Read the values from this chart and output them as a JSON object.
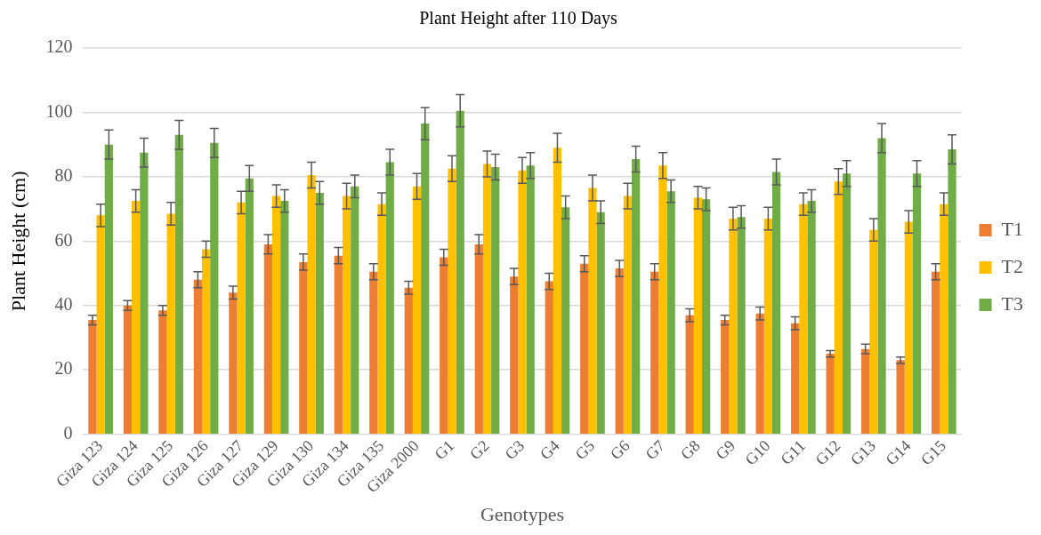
{
  "chart_data": {
    "type": "bar",
    "title": "Plant Height after 110 Days",
    "xlabel": "Genotypes",
    "ylabel": "Plant Height (cm)",
    "categories": [
      "Giza 123",
      "Giza 124",
      "Giza 125",
      "Giza 126",
      "Giza 127",
      "Giza 129",
      "Giza 130",
      "Giza 134",
      "Giza 135",
      "Giza 2000",
      "G1",
      "G2",
      "G3",
      "G4",
      "G5",
      "G6",
      "G7",
      "G8",
      "G9",
      "G10",
      "G11",
      "G12",
      "G13",
      "G14",
      "G15"
    ],
    "series": [
      {
        "name": "T1",
        "color": "#ed7d31",
        "values": [
          35.5,
          40,
          38.5,
          48,
          44,
          59,
          53.5,
          55.5,
          50.5,
          45.5,
          55,
          59,
          49,
          47.5,
          53,
          51.5,
          50.5,
          37,
          35.5,
          37.5,
          34.5,
          25,
          26.5,
          23,
          50.5
        ],
        "errors": [
          1.5,
          1.5,
          1.5,
          2.5,
          2,
          3,
          2.5,
          2.5,
          2.5,
          2,
          2.5,
          3,
          2.5,
          2.5,
          2.5,
          2.5,
          2.5,
          2,
          1.5,
          2,
          2,
          1,
          1.5,
          1,
          2.5
        ]
      },
      {
        "name": "T2",
        "color": "#ffc000",
        "values": [
          68,
          72.5,
          68.5,
          57.5,
          72,
          74,
          80.5,
          74,
          71.5,
          77,
          82.5,
          84,
          82,
          89,
          76.5,
          74,
          83.5,
          73.5,
          67,
          67,
          71.5,
          78.5,
          63.5,
          66,
          71.5
        ],
        "errors": [
          3.5,
          3.5,
          3.5,
          2.5,
          3.5,
          3.5,
          4,
          4,
          3.5,
          4,
          4,
          4,
          4,
          4.5,
          4,
          4,
          4,
          3.5,
          3.5,
          3.5,
          3.5,
          4,
          3.5,
          3.5,
          3.5
        ]
      },
      {
        "name": "T3",
        "color": "#70ad47",
        "values": [
          90,
          87.5,
          93,
          90.5,
          79.5,
          72.5,
          75,
          77,
          84.5,
          96.5,
          100.5,
          83,
          83.5,
          70.5,
          69,
          85.5,
          75.5,
          73,
          67.5,
          81.5,
          72.5,
          81,
          92,
          81,
          88.5
        ],
        "errors": [
          4.5,
          4.5,
          4.5,
          4.5,
          4,
          3.5,
          3.5,
          3.5,
          4,
          5,
          5,
          4,
          4,
          3.5,
          3.5,
          4,
          3.5,
          3.5,
          3.5,
          4,
          3.5,
          4,
          4.5,
          4,
          4.5
        ]
      }
    ],
    "ylim": [
      0,
      120
    ],
    "yticks": [
      0,
      20,
      40,
      60,
      80,
      100,
      120
    ],
    "grid": "y",
    "legend": "right"
  }
}
